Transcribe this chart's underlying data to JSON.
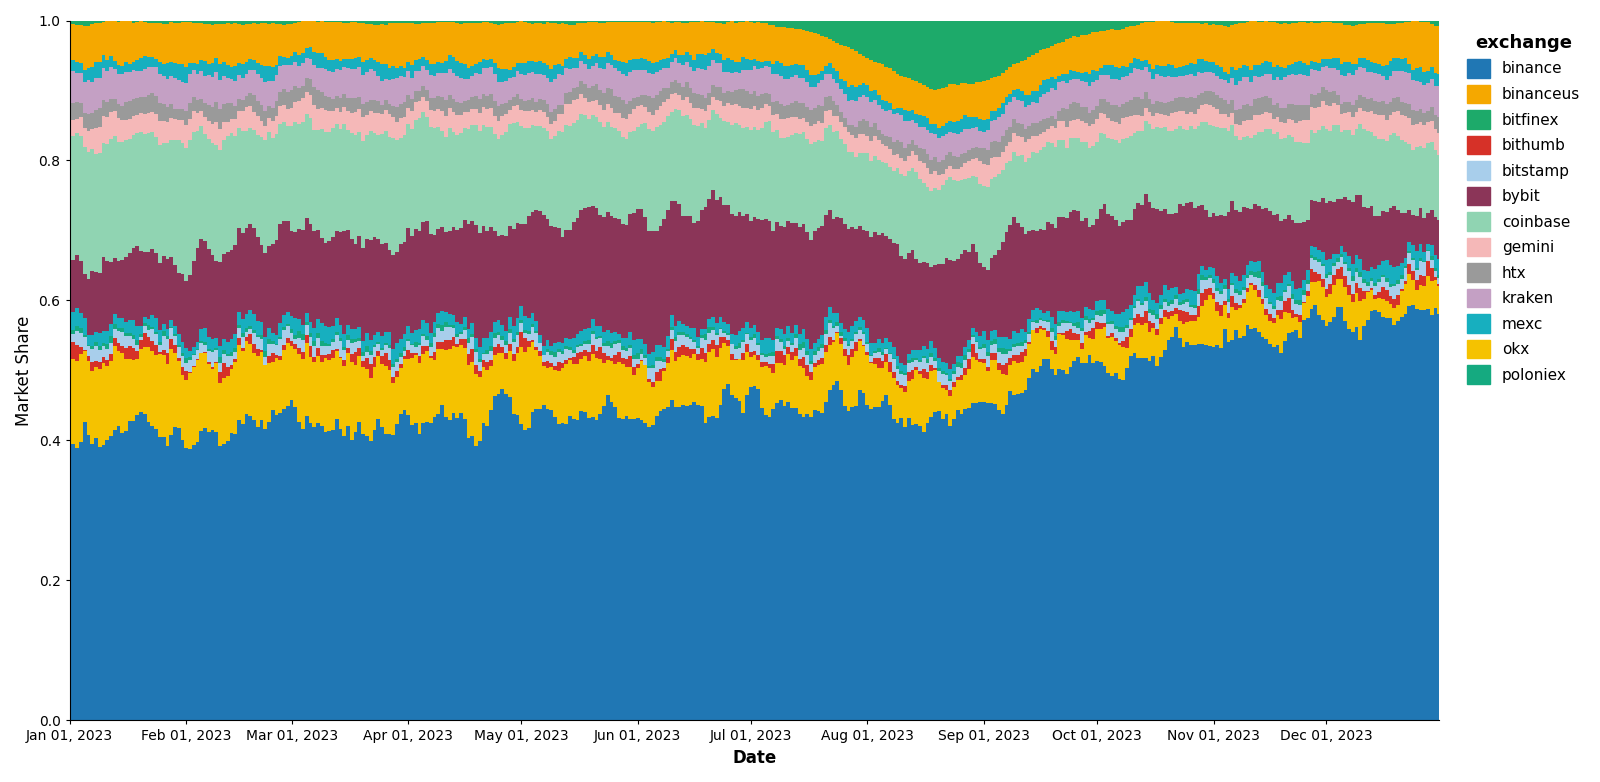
{
  "exchanges": [
    "binance",
    "binanceus",
    "bitfinex",
    "bithumb",
    "bitstamp",
    "bybit",
    "coinbase",
    "gemini",
    "htx",
    "kraken",
    "mexc",
    "okx",
    "poloniex"
  ],
  "colors": {
    "binance": "#2077B4",
    "binanceus": "#F5A800",
    "bitfinex": "#1DAA6A",
    "bithumb": "#D63128",
    "bitstamp": "#A8CEEB",
    "bybit": "#8B3558",
    "coinbase": "#90D4B2",
    "gemini": "#F5B8B8",
    "htx": "#9A9A9A",
    "kraken": "#C4A0C4",
    "mexc": "#17AFBF",
    "okx": "#F5C200",
    "poloniex": "#15AA80"
  },
  "xlabel": "Date",
  "ylabel": "Market Share",
  "ylim": [
    0,
    1
  ],
  "legend_title": "exchange"
}
